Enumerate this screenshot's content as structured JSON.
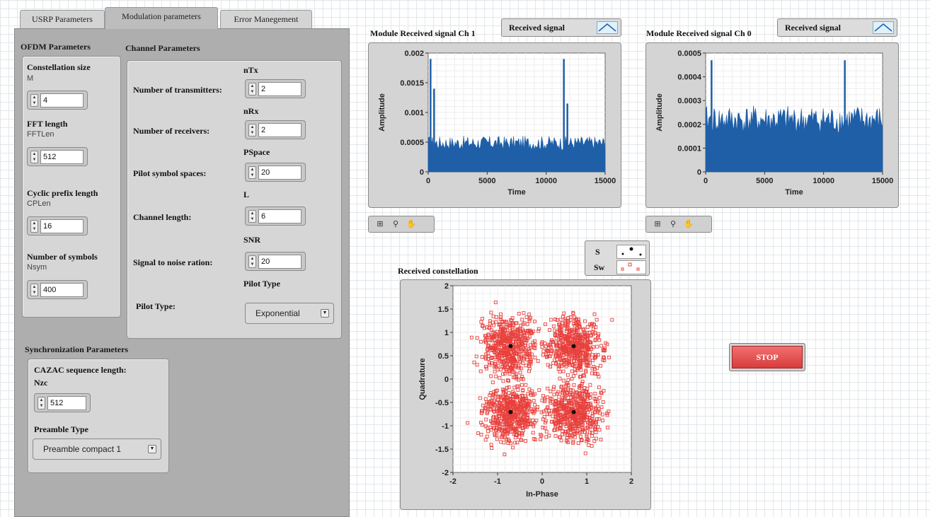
{
  "tabs": [
    {
      "label": "USRP Parameters"
    },
    {
      "label": "Modulation parameters"
    },
    {
      "label": "Error Manegement"
    }
  ],
  "ofdm": {
    "title": "OFDM Parameters",
    "constellation": {
      "label": "Constellation size",
      "var": "M",
      "value": "4"
    },
    "fft": {
      "label": "FFT length",
      "var": "FFTLen",
      "value": "512"
    },
    "cp": {
      "label": "Cyclic prefix  length",
      "var": "CPLen",
      "value": "16"
    },
    "nsym": {
      "label": "Number of symbols",
      "var": "Nsym",
      "value": "400"
    }
  },
  "channel": {
    "title": "Channel Parameters",
    "ntx": {
      "label": "Number of transmitters:",
      "var": "nTx",
      "value": "2"
    },
    "nrx": {
      "label": "Number of receivers:",
      "var": "nRx",
      "value": "2"
    },
    "pspace": {
      "label": "Pilot symbol spaces:",
      "var": "PSpace",
      "value": "20"
    },
    "len": {
      "label": "Channel length:",
      "var": "L",
      "value": "6"
    },
    "snr": {
      "label": "Signal to noise ration:",
      "var": "SNR",
      "value": "20"
    },
    "pilot": {
      "label": "Pilot Type:",
      "var": "Pilot Type",
      "value": "Exponential"
    }
  },
  "sync": {
    "title": "Synchronization Parameters",
    "cazac_label": "CAZAC sequence length:",
    "cazac_var": "Nzc",
    "cazac_value": "512",
    "preamble_label": "Preamble Type",
    "preamble_value": "Preamble compact 1"
  },
  "graph_ch1": {
    "title": "Module Received signal Ch 1",
    "legend": "Received signal",
    "xlabel": "Time",
    "ylabel": "Amplitude",
    "yticks": [
      "0.002",
      "0.0015",
      "0.001",
      "0.0005",
      "0"
    ],
    "xticks": [
      "0",
      "5000",
      "10000",
      "15000"
    ]
  },
  "graph_ch0": {
    "title": "Module Received signal Ch 0",
    "legend": "Received signal",
    "xlabel": "Time",
    "ylabel": "Amplitude",
    "yticks": [
      "0.0005",
      "0.0004",
      "0.0003",
      "0.0002",
      "0.0001",
      "0"
    ],
    "xticks": [
      "0",
      "5000",
      "10000",
      "15000"
    ]
  },
  "constellation_plot": {
    "title": "Received constellation",
    "xlabel": "In-Phase",
    "ylabel": "Quadrature",
    "yticks": [
      "2",
      "1.5",
      "1",
      "0.5",
      "0",
      "-0.5",
      "-1",
      "-1.5",
      "-2"
    ],
    "xticks": [
      "-2",
      "-1",
      "0",
      "1",
      "2"
    ],
    "legend": [
      {
        "name": "S"
      },
      {
        "name": "Sw"
      }
    ]
  },
  "stop_label": "STOP",
  "colors": {
    "signal": "#1f5fa8",
    "constellation": "#e8403c",
    "reference": "#111111"
  },
  "chart_data": [
    {
      "type": "bar",
      "title": "Module Received signal Ch 1",
      "xlabel": "Time",
      "ylabel": "Amplitude",
      "xlim": [
        0,
        15000
      ],
      "ylim": [
        0,
        0.002
      ],
      "baseline": 0.00045,
      "noise": 0.00012,
      "peaks": [
        {
          "x": 200,
          "y": 0.0019
        },
        {
          "x": 500,
          "y": 0.0014
        },
        {
          "x": 11500,
          "y": 0.0019
        },
        {
          "x": 11800,
          "y": 0.00115
        }
      ]
    },
    {
      "type": "bar",
      "title": "Module Received signal Ch 0",
      "xlabel": "Time",
      "ylabel": "Amplitude",
      "xlim": [
        0,
        15000
      ],
      "ylim": [
        0,
        0.0005
      ],
      "baseline": 0.0002,
      "noise": 6e-05,
      "peaks": [
        {
          "x": 500,
          "y": 0.00047
        },
        {
          "x": 11800,
          "y": 0.00047
        }
      ]
    },
    {
      "type": "scatter",
      "title": "Received constellation",
      "xlabel": "In-Phase",
      "ylabel": "Quadrature",
      "xlim": [
        -2,
        2
      ],
      "ylim": [
        -2,
        2
      ],
      "series": [
        {
          "name": "S",
          "points": [
            [
              -0.707,
              0.707
            ],
            [
              0.707,
              0.707
            ],
            [
              -0.707,
              -0.707
            ],
            [
              0.707,
              -0.707
            ]
          ]
        },
        {
          "name": "Sw",
          "spread": 0.3
        }
      ]
    }
  ]
}
